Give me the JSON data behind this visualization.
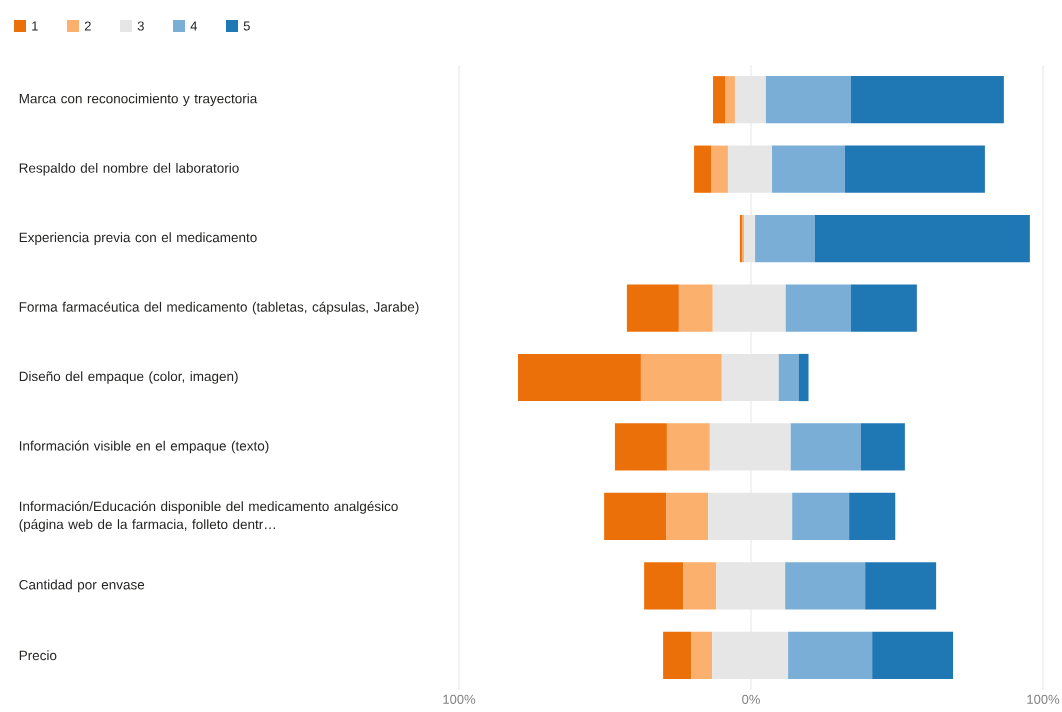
{
  "chart_data": {
    "type": "bar",
    "orientation": "horizontal",
    "categories": [
      "Marca con reconocimiento y trayectoria",
      "Respaldo del nombre del laboratorio",
      "Experiencia previa con el medicamento",
      "Forma farmacéutica del medicamento (tabletas, cápsulas, Jarabe)",
      "Diseño del empaque (color, imagen)",
      "Información visible en el empaque (texto)",
      "Información/Educación disponible del medicamento analgésico (página web de la farmacia, folleto dentr…",
      "Cantidad por envase",
      "Precio"
    ],
    "series": [
      {
        "name": "1",
        "color": "#ec7009",
        "base": [
          -13.0,
          -19.5,
          -3.8,
          -42.5,
          -79.8,
          -46.6,
          -50.3,
          -36.6,
          -30.1
        ],
        "values": [
          4.1,
          5.8,
          0.7,
          17.8,
          42.1,
          17.8,
          21.2,
          13.4,
          9.6
        ]
      },
      {
        "name": "2",
        "color": "#fcb06d",
        "base": [
          -8.9,
          -13.7,
          -3.1,
          -24.7,
          -37.7,
          -28.8,
          -29.1,
          -23.2,
          -20.5
        ],
        "values": [
          3.4,
          5.8,
          0.7,
          11.6,
          27.7,
          14.7,
          14.4,
          11.3,
          7.2
        ]
      },
      {
        "name": "3",
        "color": "#e6e6e6",
        "base": [
          -5.5,
          -7.9,
          -2.4,
          -13.1,
          -10.0,
          -14.1,
          -14.7,
          -11.9,
          -13.3
        ],
        "values": [
          10.6,
          15.1,
          3.8,
          25.0,
          19.5,
          27.7,
          28.8,
          23.6,
          26.0
        ]
      },
      {
        "name": "4",
        "color": "#7aaed6",
        "base": [
          5.1,
          7.2,
          1.4,
          11.9,
          9.5,
          13.6,
          14.1,
          11.7,
          12.7
        ],
        "values": [
          29.1,
          25.0,
          20.5,
          22.3,
          6.8,
          24.0,
          19.5,
          27.4,
          28.8
        ]
      },
      {
        "name": "5",
        "color": "#1f77b4",
        "base": [
          34.2,
          32.2,
          21.9,
          34.2,
          16.3,
          37.6,
          33.6,
          39.1,
          41.5
        ],
        "values": [
          52.4,
          47.9,
          73.6,
          22.6,
          3.4,
          15.1,
          15.8,
          24.3,
          27.7
        ]
      }
    ],
    "xlim": [
      -100,
      100
    ],
    "xticks": [
      {
        "value": -100,
        "label": "100%"
      },
      {
        "value": 0,
        "label": "0%"
      },
      {
        "value": 100,
        "label": "100%"
      }
    ],
    "grid": "x",
    "legend": "top left"
  }
}
